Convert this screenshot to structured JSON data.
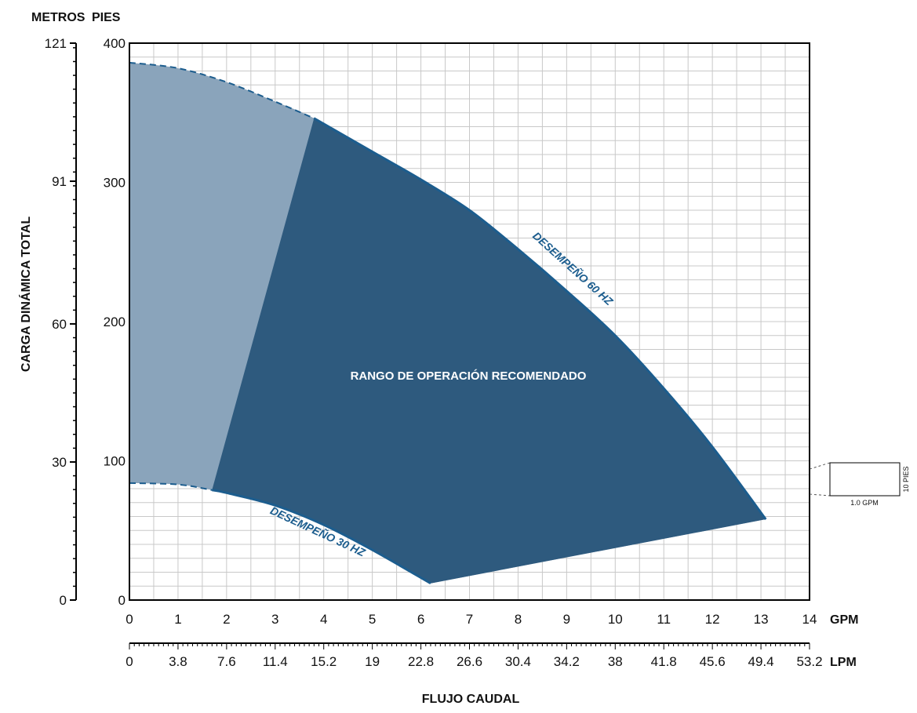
{
  "chart_data": {
    "type": "area",
    "x_unit_primary": "GPM",
    "x_unit_secondary": "LPM",
    "y_unit_left": "METROS",
    "y_unit_right": "PIES",
    "xlabel": "FLUJO CAUDAL",
    "ylabel": "CARGA DINÁMICA TOTAL",
    "xlim": [
      0,
      14
    ],
    "ylim": [
      0,
      400
    ],
    "gpm_ticks": [
      0,
      1,
      2,
      3,
      4,
      5,
      6,
      7,
      8,
      9,
      10,
      11,
      12,
      13,
      14
    ],
    "lpm_ticks": [
      "0",
      "3.8",
      "7.6",
      "11.4",
      "15.2",
      "19",
      "22.8",
      "26.6",
      "30.4",
      "34.2",
      "38",
      "41.8",
      "45.6",
      "49.4",
      "53.2"
    ],
    "pies_ticks": [
      0,
      100,
      200,
      300,
      400
    ],
    "metros_ticks": [
      0,
      30,
      60,
      91,
      121
    ],
    "grid": true,
    "series": [
      {
        "name": "DESEMPEÑO 60 HZ",
        "x": [
          0,
          1,
          2,
          3,
          3.8,
          5,
          6,
          7,
          8,
          9,
          10,
          11,
          12,
          13.1
        ],
        "y": [
          386,
          382,
          372,
          358,
          346,
          322,
          302,
          280,
          252,
          222,
          190,
          152,
          110,
          58
        ]
      },
      {
        "name": "DESEMPEÑO 30 HZ",
        "x": [
          0,
          1,
          1.7,
          2,
          3,
          4,
          5,
          6.2
        ],
        "y": [
          84,
          83,
          79,
          77,
          68,
          54,
          36,
          12
        ]
      }
    ],
    "region_label": "RANGO DE OPERACIÓN RECOMENDADO",
    "scale_box": {
      "height_label": "10 PIES",
      "width_label": "1.0 GPM"
    },
    "colors": {
      "recommended": "#2e5a7e",
      "non_recommended": "#8aa4bb",
      "curve": "#1c5d8e",
      "grid": "#c8c8c8",
      "axis": "#000000"
    }
  }
}
